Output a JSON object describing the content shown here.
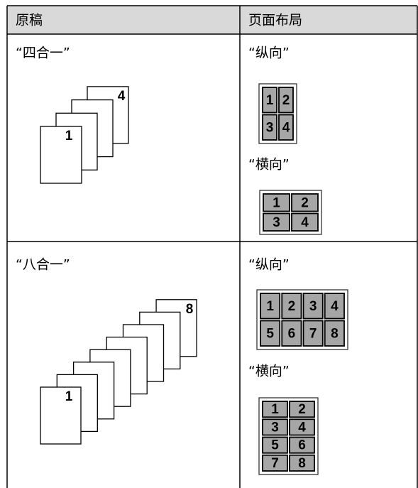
{
  "header": [
    "原稿",
    "页面布局"
  ],
  "rows": [
    {
      "mode": "“四合一”",
      "stack": {
        "first": "1",
        "last": "4"
      },
      "layouts": [
        {
          "label": "“纵向”",
          "cells": [
            [
              "1",
              "2"
            ],
            [
              "3",
              "4"
            ]
          ]
        },
        {
          "label": "“横向”",
          "cells": [
            [
              "1",
              "2"
            ],
            [
              "3",
              "4"
            ]
          ]
        }
      ]
    },
    {
      "mode": "“八合一”",
      "stack": {
        "first": "1",
        "last": "8"
      },
      "layouts": [
        {
          "label": "“纵向”",
          "cells": [
            [
              "1",
              "2",
              "3",
              "4"
            ],
            [
              "5",
              "6",
              "7",
              "8"
            ]
          ]
        },
        {
          "label": "“横向”",
          "cells": [
            [
              "1",
              "2"
            ],
            [
              "3",
              "4"
            ],
            [
              "5",
              "6"
            ],
            [
              "7",
              "8"
            ]
          ]
        }
      ]
    }
  ]
}
